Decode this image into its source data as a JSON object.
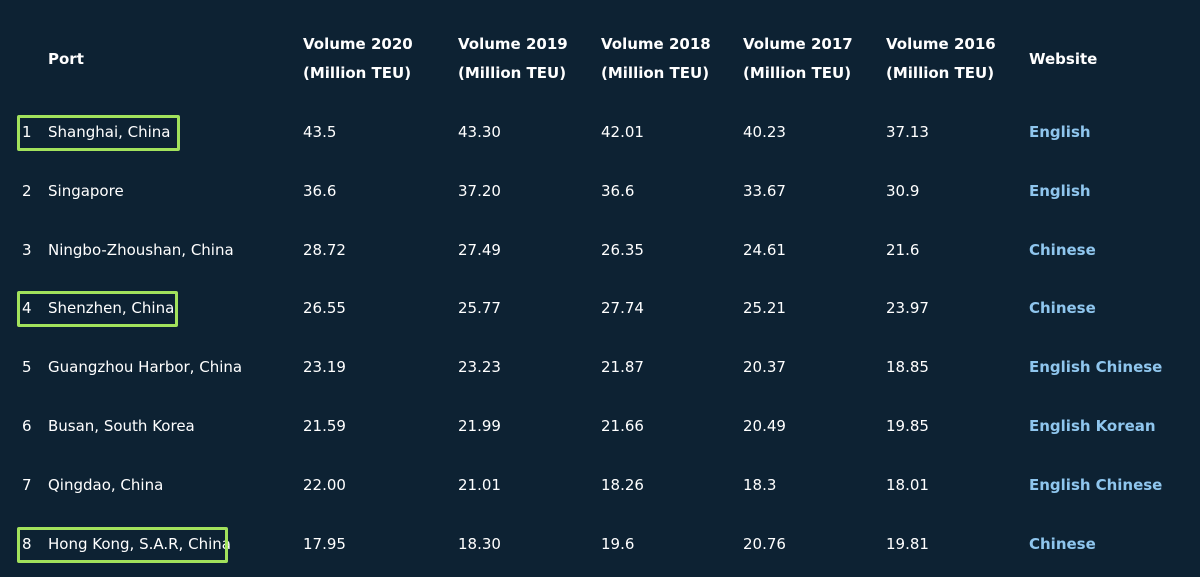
{
  "headers": {
    "port": "Port",
    "v2020": [
      "Volume 2020",
      "(Million TEU)"
    ],
    "v2019": [
      "Volume 2019",
      "(Million TEU)"
    ],
    "v2018": [
      "Volume 2018",
      "(Million TEU)"
    ],
    "v2017": [
      "Volume 2017",
      "(Million TEU)"
    ],
    "v2016": [
      "Volume 2016",
      "(Million TEU)"
    ],
    "website": "Website"
  },
  "rows": [
    {
      "rank": "1",
      "port": "Shanghai, China",
      "v2020": "43.5",
      "v2019": "43.30",
      "v2018": "42.01",
      "v2017": "40.23",
      "v2016": "37.13",
      "links": [
        "English"
      ],
      "highlighted": true
    },
    {
      "rank": "2",
      "port": "Singapore",
      "v2020": "36.6",
      "v2019": "37.20",
      "v2018": "36.6",
      "v2017": "33.67",
      "v2016": "30.9",
      "links": [
        "English"
      ],
      "highlighted": false
    },
    {
      "rank": "3",
      "port": "Ningbo-Zhoushan, China",
      "v2020": "28.72",
      "v2019": "27.49",
      "v2018": "26.35",
      "v2017": "24.61",
      "v2016": "21.6",
      "links": [
        "Chinese"
      ],
      "highlighted": false
    },
    {
      "rank": "4",
      "port": "Shenzhen, China",
      "v2020": "26.55",
      "v2019": "25.77",
      "v2018": "27.74",
      "v2017": "25.21",
      "v2016": "23.97",
      "links": [
        "Chinese"
      ],
      "highlighted": true
    },
    {
      "rank": "5",
      "port": "Guangzhou Harbor, China",
      "v2020": "23.19",
      "v2019": "23.23",
      "v2018": "21.87",
      "v2017": "20.37",
      "v2016": "18.85",
      "links": [
        "English",
        "Chinese"
      ],
      "highlighted": false
    },
    {
      "rank": "6",
      "port": "Busan, South Korea",
      "v2020": "21.59",
      "v2019": "21.99",
      "v2018": "21.66",
      "v2017": "20.49",
      "v2016": "19.85",
      "links": [
        "English",
        "Korean"
      ],
      "highlighted": false
    },
    {
      "rank": "7",
      "port": "Qingdao, China",
      "v2020": "22.00",
      "v2019": "21.01",
      "v2018": "18.26",
      "v2017": "18.3",
      "v2016": "18.01",
      "links": [
        "English",
        "Chinese"
      ],
      "highlighted": false
    },
    {
      "rank": "8",
      "port": "Hong Kong, S.A.R, China",
      "v2020": "17.95",
      "v2019": "18.30",
      "v2018": "19.6",
      "v2017": "20.76",
      "v2016": "19.81",
      "links": [
        "Chinese"
      ],
      "highlighted": true
    }
  ],
  "colors": {
    "background": "#0d2233",
    "text": "#ffffff",
    "link": "#8fc6ee",
    "highlight_border": "#a2e25c"
  }
}
